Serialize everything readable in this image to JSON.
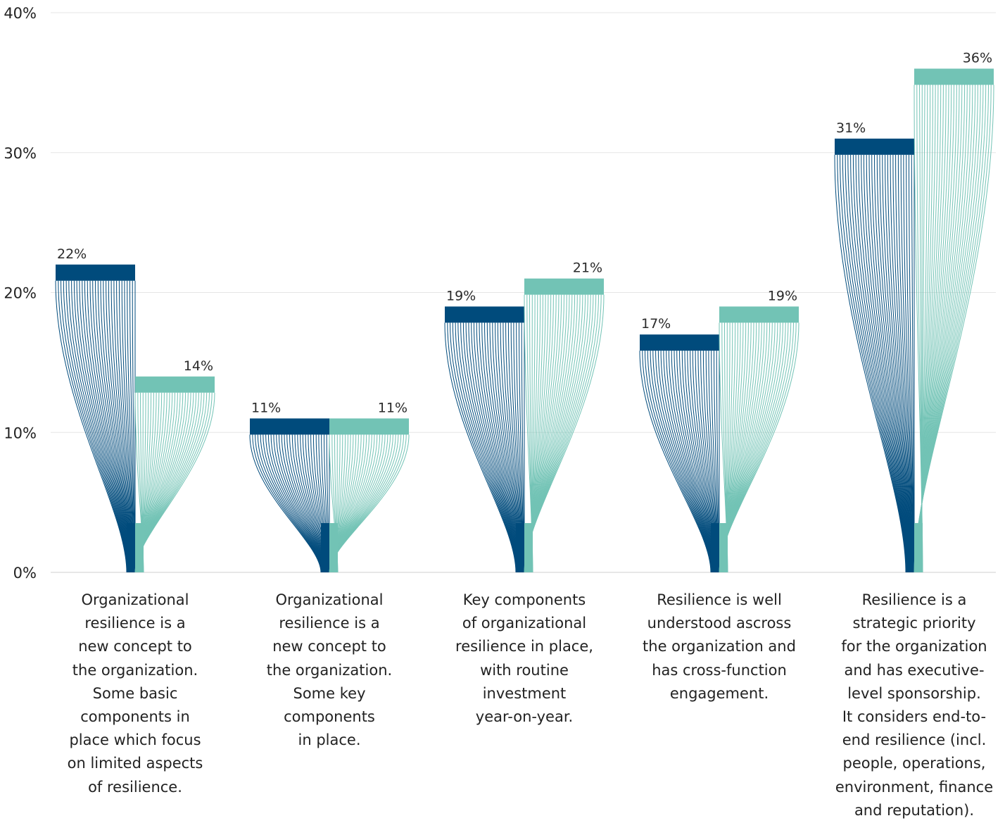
{
  "chart_data": {
    "type": "bar",
    "ylim": [
      0,
      40
    ],
    "yticks": [
      0,
      10,
      20,
      30,
      40
    ],
    "ytick_labels": [
      "0%",
      "10%",
      "20%",
      "30%",
      "40%"
    ],
    "grid": true,
    "colors": {
      "series_1": "#004b7c",
      "series_2": "#72c3b5"
    },
    "categories": [
      "Organizational\nresilience is a\nnew concept to\nthe organization.\nSome basic\ncomponents in\nplace which focus\non limited aspects\nof resilience.",
      "Organizational\nresilience is a\nnew concept to\nthe organization.\nSome key\ncomponents\nin place.",
      "Key components\nof organizational\nresilience in place,\nwith routine\ninvestment\nyear-on-year.",
      "Resilience is well\nunderstood ascross\nthe organization and\nhas cross-function\nengagement.",
      "Resilience is a\nstrategic priority\nfor the organization\nand has executive-\nlevel sponsorship.\nIt considers end-to-\nend resilience (incl.\npeople, operations,\nenvironment, finance\nand reputation)."
    ],
    "series": [
      {
        "values": [
          22,
          11,
          19,
          17,
          31
        ],
        "labels": [
          "22%",
          "11%",
          "19%",
          "17%",
          "31%"
        ]
      },
      {
        "values": [
          14,
          11,
          21,
          19,
          36
        ],
        "labels": [
          "14%",
          "11%",
          "21%",
          "19%",
          "36%"
        ]
      }
    ]
  }
}
